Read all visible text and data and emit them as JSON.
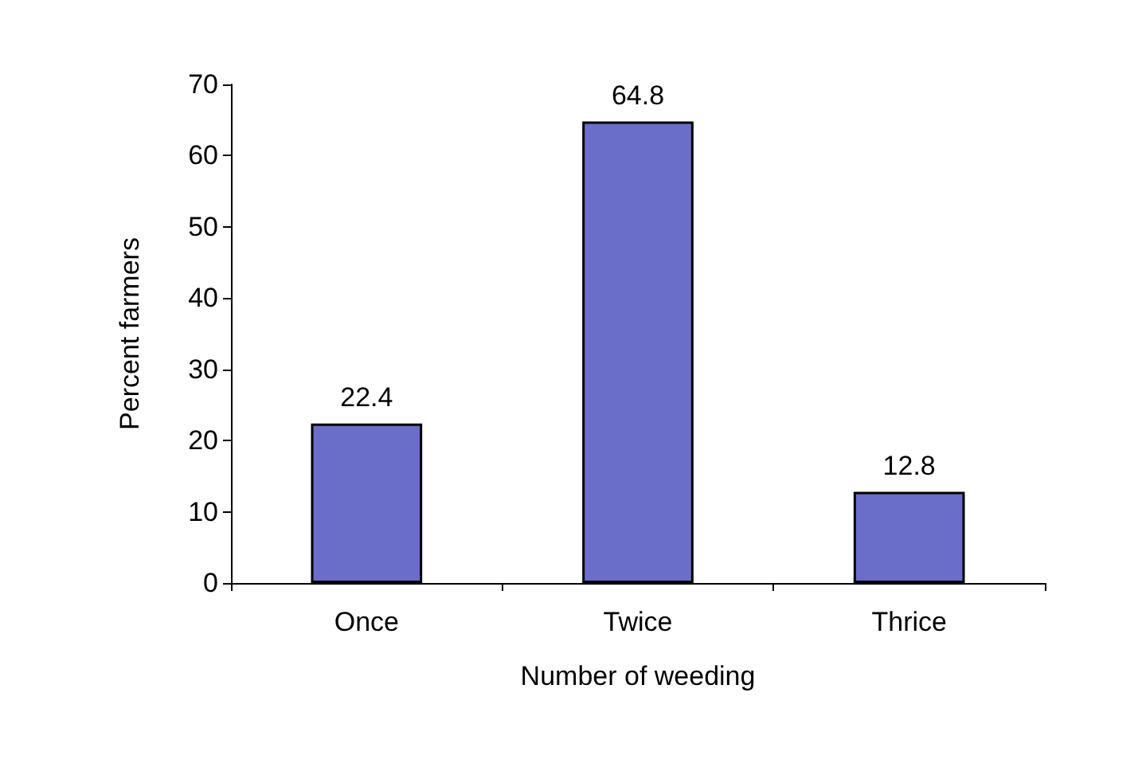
{
  "chart_data": {
    "type": "bar",
    "xlabel": "Number of weeding",
    "ylabel": "Percent farmers",
    "categories": [
      "Once",
      "Twice",
      "Thrice"
    ],
    "values": [
      22.4,
      64.8,
      12.8
    ],
    "color": "#6a6ec8",
    "ylim": [
      0,
      70
    ],
    "yticks": [
      0,
      10,
      20,
      30,
      40,
      50,
      60,
      70
    ],
    "grid": false,
    "data_labels": true
  }
}
